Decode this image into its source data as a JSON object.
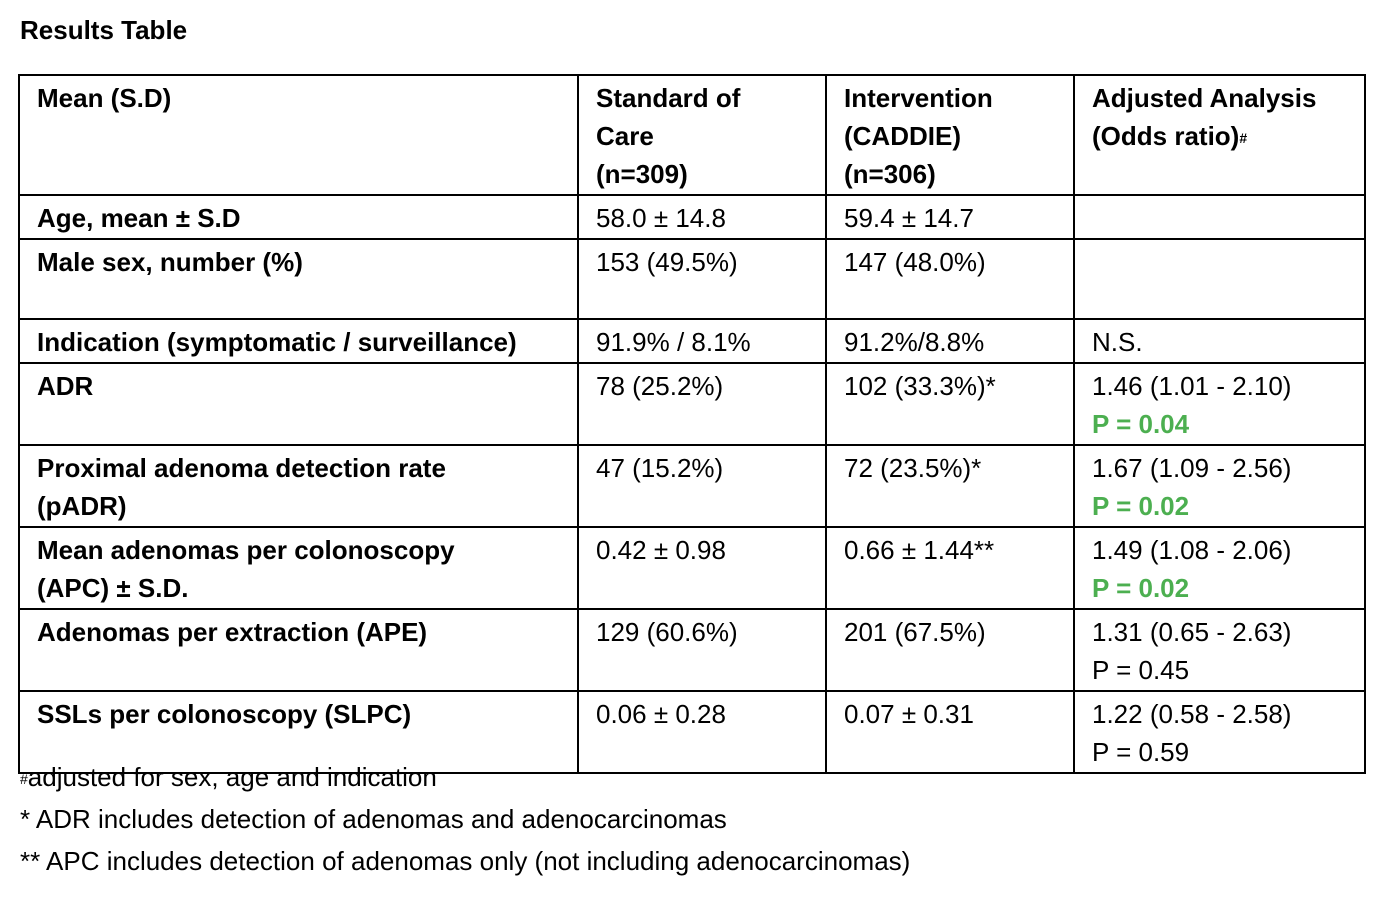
{
  "title": "Results Table",
  "colors": {
    "significant": "#4caf50"
  },
  "table": {
    "headers": [
      {
        "lines": [
          "Mean (S.D)"
        ]
      },
      {
        "lines": [
          "Standard of",
          "Care",
          "(n=309)"
        ]
      },
      {
        "lines": [
          "Intervention",
          "(CADDIE)",
          "(n=306)"
        ]
      },
      {
        "lines": [
          "Adjusted Analysis",
          "(Odds ratio)"
        ],
        "sup": "#"
      }
    ],
    "rows": [
      {
        "label": [
          "Age, mean ± S.D"
        ],
        "soc": "58.0 ± 14.8",
        "int": "59.4 ± 14.7",
        "or": "",
        "p": "",
        "sig": false,
        "height": 42
      },
      {
        "label": [
          "Male sex, number (%)"
        ],
        "soc": "153 (49.5%)",
        "int": "147 (48.0%)",
        "or": "",
        "p": "",
        "sig": false,
        "height": 80
      },
      {
        "label": [
          "Indication (symptomatic / surveillance)"
        ],
        "soc": "91.9% / 8.1%",
        "int": "91.2%/8.8%",
        "or": "N.S.",
        "p": "",
        "sig": false,
        "height": 40
      },
      {
        "label": [
          "ADR"
        ],
        "soc": "78 (25.2%)",
        "int": "102 (33.3%)*",
        "or": "1.46 (1.01 - 2.10)",
        "p": "P = 0.04",
        "sig": true,
        "height": 80
      },
      {
        "label": [
          "Proximal adenoma detection rate",
          "(pADR)"
        ],
        "soc": "47 (15.2%)",
        "int": "72 (23.5%)*",
        "or": "1.67 (1.09 - 2.56)",
        "p": "P = 0.02",
        "sig": true,
        "height": 80
      },
      {
        "label": [
          "Mean adenomas per colonoscopy",
          "(APC) ± S.D."
        ],
        "soc": "0.42 ± 0.98",
        "int": "0.66 ± 1.44**",
        "or": "1.49 (1.08 - 2.06)",
        "p": "P = 0.02",
        "sig": true,
        "height": 80
      },
      {
        "label": [
          "Adenomas per extraction (APE)"
        ],
        "soc": "129 (60.6%)",
        "int": "201 (67.5%)",
        "or": "1.31 (0.65 - 2.63)",
        "p": "P = 0.45",
        "sig": false,
        "height": 80
      },
      {
        "label": [
          "SSLs per colonoscopy (SLPC)"
        ],
        "soc": "0.06 ± 0.28",
        "int": "0.07 ± 0.31",
        "or": "1.22 (0.58 - 2.58)",
        "p": "P = 0.59",
        "sig": false,
        "height": 78
      }
    ]
  },
  "footnotes": [
    {
      "sup": "#",
      "text": "adjusted for sex, age and indication"
    },
    {
      "sup": "",
      "text": "* ADR includes detection of adenomas and adenocarcinomas"
    },
    {
      "sup": "",
      "text": "** APC includes detection of adenomas only (not including adenocarcinomas)"
    }
  ]
}
